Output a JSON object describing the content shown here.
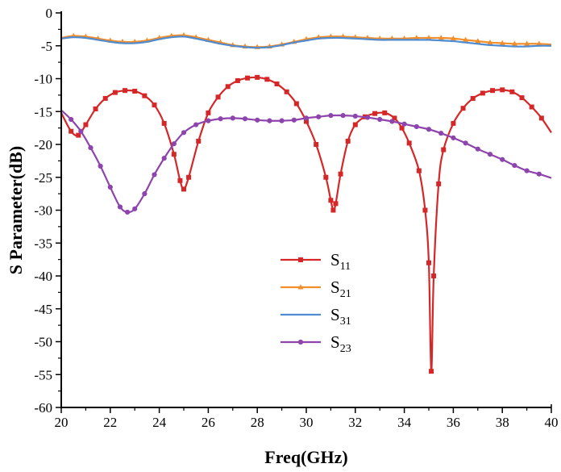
{
  "chart_data": {
    "type": "line",
    "title": "",
    "xlabel": "Freq(GHz)",
    "ylabel": "S Parameter(dB)",
    "xlim": [
      20,
      40
    ],
    "ylim": [
      -60,
      0
    ],
    "xticks": [
      20,
      22,
      24,
      26,
      28,
      30,
      32,
      34,
      36,
      38,
      40
    ],
    "yticks": [
      0,
      -5,
      -10,
      -15,
      -20,
      -25,
      -30,
      -35,
      -40,
      -45,
      -50,
      -55,
      -60
    ],
    "grid": false,
    "legend": {
      "placement": "lower-center"
    },
    "series": [
      {
        "name": "S11",
        "label_main": "S",
        "label_sub": "11",
        "color": "#d62728",
        "marker": "square",
        "x": [
          20,
          20.4,
          20.7,
          21.0,
          21.4,
          21.8,
          22.2,
          22.6,
          23.0,
          23.4,
          23.8,
          24.2,
          24.6,
          24.85,
          25.0,
          25.2,
          25.6,
          26.0,
          26.4,
          26.8,
          27.2,
          27.6,
          28.0,
          28.4,
          28.8,
          29.2,
          29.6,
          30.0,
          30.4,
          30.8,
          31.0,
          31.1,
          31.2,
          31.4,
          31.7,
          32.0,
          32.4,
          32.8,
          33.2,
          33.6,
          33.9,
          34.2,
          34.6,
          34.85,
          35.0,
          35.1,
          35.2,
          35.4,
          35.6,
          36.0,
          36.4,
          36.8,
          37.2,
          37.6,
          38.0,
          38.4,
          38.8,
          39.2,
          39.6,
          40.0
        ],
        "y": [
          -15.2,
          -18.0,
          -18.6,
          -17.0,
          -14.6,
          -13.0,
          -12.1,
          -11.8,
          -11.9,
          -12.6,
          -14.0,
          -16.8,
          -21.5,
          -25.5,
          -26.8,
          -25.0,
          -19.5,
          -15.2,
          -12.8,
          -11.2,
          -10.3,
          -9.9,
          -9.8,
          -10.1,
          -10.8,
          -12.0,
          -13.8,
          -16.5,
          -20.0,
          -25.0,
          -28.5,
          -30.0,
          -29.0,
          -24.5,
          -19.5,
          -17.0,
          -15.8,
          -15.3,
          -15.2,
          -16.0,
          -17.5,
          -19.8,
          -24.0,
          -30.0,
          -38.0,
          -54.5,
          -40.0,
          -26.0,
          -20.8,
          -16.8,
          -14.5,
          -13.0,
          -12.2,
          -11.8,
          -11.7,
          -12.0,
          -12.9,
          -14.3,
          -16.0,
          -18.2
        ]
      },
      {
        "name": "S21",
        "label_main": "S",
        "label_sub": "21",
        "color": "#f28e2b",
        "marker": "triangle",
        "x": [
          20,
          20.5,
          21,
          21.5,
          22,
          22.5,
          23,
          23.5,
          24,
          24.5,
          25,
          25.5,
          26,
          26.5,
          27,
          27.5,
          28,
          28.5,
          29,
          29.5,
          30,
          30.5,
          31,
          31.5,
          32,
          32.5,
          33,
          33.5,
          34,
          34.5,
          35,
          35.5,
          36,
          36.5,
          37,
          37.5,
          38,
          38.5,
          39,
          39.5,
          40
        ],
        "y": [
          -3.8,
          -3.5,
          -3.6,
          -3.9,
          -4.2,
          -4.4,
          -4.4,
          -4.2,
          -3.8,
          -3.5,
          -3.4,
          -3.7,
          -4.1,
          -4.5,
          -4.9,
          -5.1,
          -5.2,
          -5.1,
          -4.8,
          -4.4,
          -4.0,
          -3.7,
          -3.6,
          -3.6,
          -3.7,
          -3.8,
          -3.9,
          -3.9,
          -3.9,
          -3.8,
          -3.8,
          -3.8,
          -3.9,
          -4.1,
          -4.3,
          -4.5,
          -4.6,
          -4.7,
          -4.7,
          -4.7,
          -4.8
        ]
      },
      {
        "name": "S31",
        "label_main": "S",
        "label_sub": "31",
        "color": "#4e8bd0",
        "marker": "none",
        "x": [
          20,
          20.5,
          21,
          21.5,
          22,
          22.5,
          23,
          23.5,
          24,
          24.5,
          25,
          25.5,
          26,
          26.5,
          27,
          27.5,
          28,
          28.5,
          29,
          29.5,
          30,
          30.5,
          31,
          31.5,
          32,
          32.5,
          33,
          33.5,
          34,
          34.5,
          35,
          35.5,
          36,
          36.5,
          37,
          37.5,
          38,
          38.5,
          39,
          39.5,
          40
        ],
        "y": [
          -3.9,
          -3.7,
          -3.8,
          -4.1,
          -4.4,
          -4.6,
          -4.6,
          -4.4,
          -4.0,
          -3.7,
          -3.6,
          -3.9,
          -4.3,
          -4.7,
          -5.0,
          -5.2,
          -5.3,
          -5.2,
          -4.9,
          -4.5,
          -4.2,
          -3.9,
          -3.8,
          -3.8,
          -3.9,
          -4.0,
          -4.1,
          -4.1,
          -4.1,
          -4.1,
          -4.1,
          -4.2,
          -4.3,
          -4.5,
          -4.7,
          -4.9,
          -5.0,
          -5.1,
          -5.1,
          -5.0,
          -5.0
        ]
      },
      {
        "name": "S23",
        "label_main": "S",
        "label_sub": "23",
        "color": "#8e44ad",
        "marker": "circle",
        "x": [
          20,
          20.4,
          20.8,
          21.2,
          21.6,
          22.0,
          22.4,
          22.7,
          23.0,
          23.4,
          23.8,
          24.2,
          24.6,
          25.0,
          25.5,
          26.0,
          26.5,
          27.0,
          27.5,
          28.0,
          28.5,
          29.0,
          29.5,
          30.0,
          30.5,
          31.0,
          31.5,
          32.0,
          32.5,
          33.0,
          33.5,
          34.0,
          34.5,
          35.0,
          35.5,
          36.0,
          36.5,
          37.0,
          37.5,
          38.0,
          38.5,
          39.0,
          39.5,
          40.0
        ],
        "y": [
          -14.8,
          -16.2,
          -18.0,
          -20.5,
          -23.3,
          -26.5,
          -29.5,
          -30.3,
          -29.8,
          -27.5,
          -24.6,
          -22.1,
          -19.9,
          -18.2,
          -17.0,
          -16.4,
          -16.1,
          -16.0,
          -16.1,
          -16.3,
          -16.4,
          -16.4,
          -16.3,
          -16.0,
          -15.8,
          -15.6,
          -15.6,
          -15.7,
          -15.9,
          -16.2,
          -16.5,
          -16.9,
          -17.3,
          -17.7,
          -18.3,
          -19.0,
          -19.8,
          -20.7,
          -21.5,
          -22.3,
          -23.2,
          -24.0,
          -24.5,
          -25.1
        ]
      }
    ]
  }
}
